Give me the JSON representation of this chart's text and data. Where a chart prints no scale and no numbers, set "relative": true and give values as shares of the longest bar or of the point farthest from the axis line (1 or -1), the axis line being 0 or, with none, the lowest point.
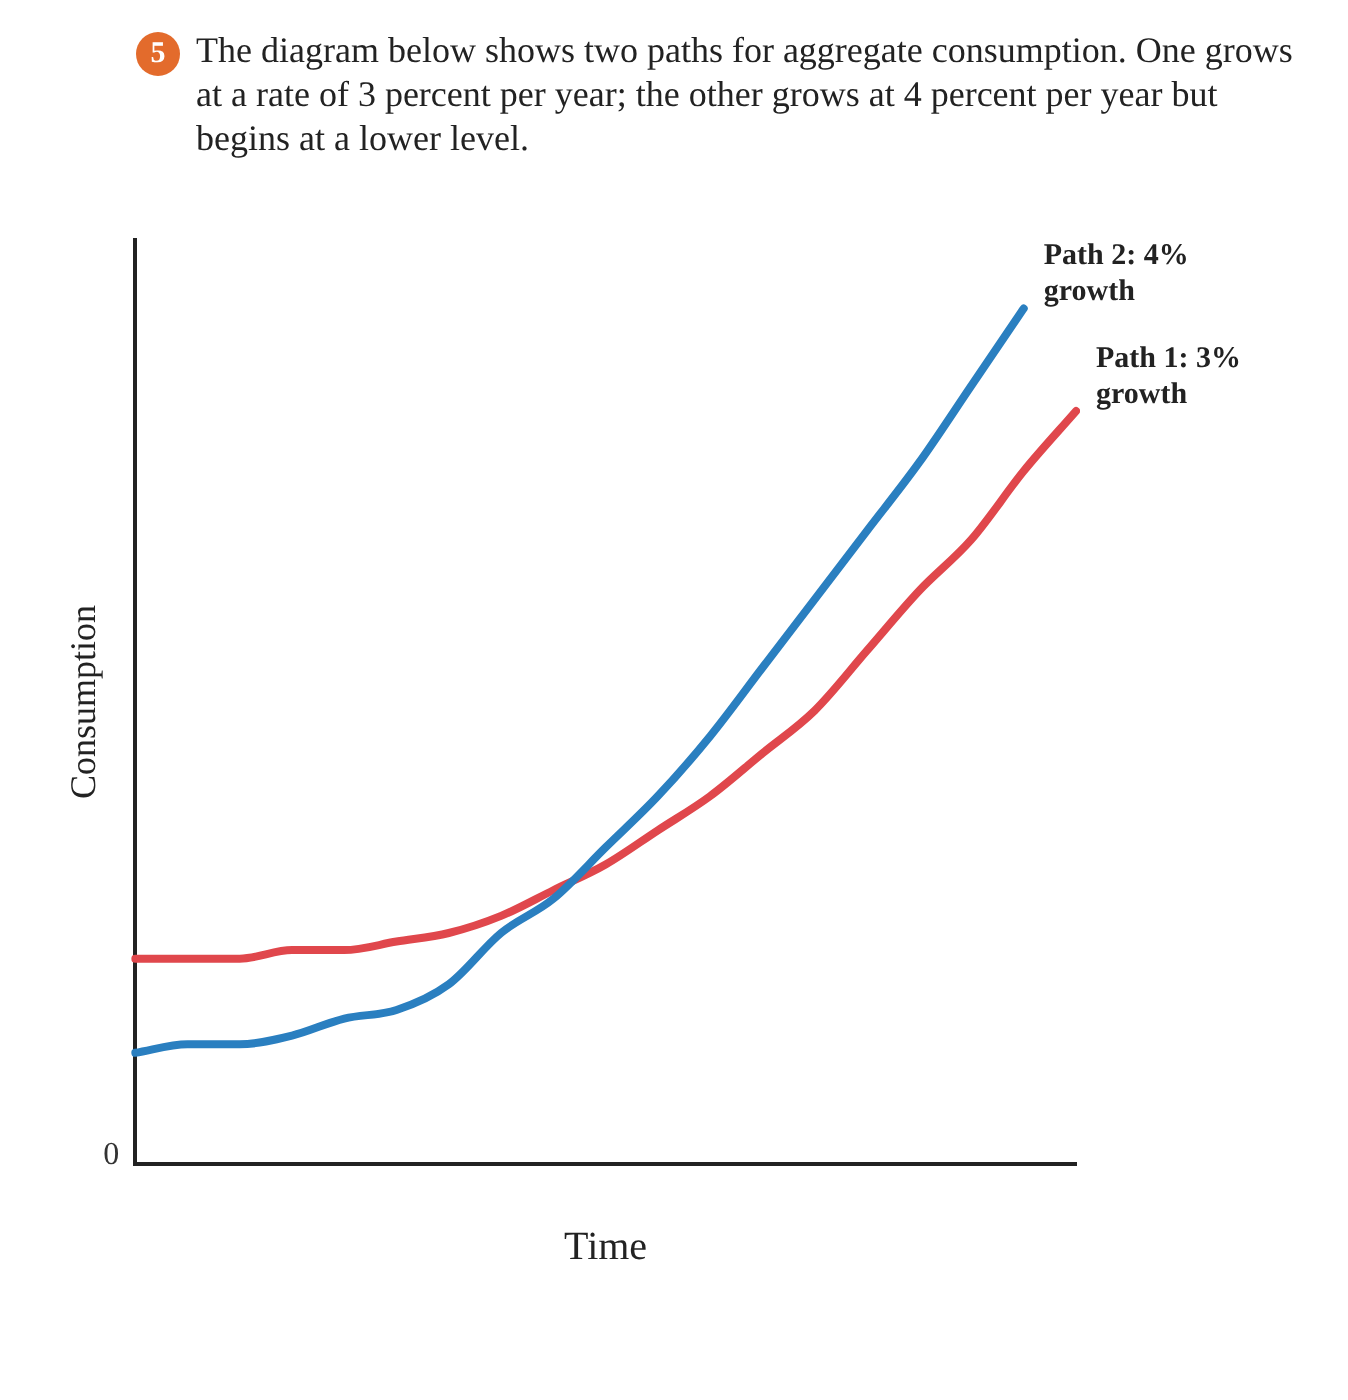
{
  "chart_data": {
    "type": "line",
    "relative": true,
    "title": "The diagram below shows two paths for aggregate consumption. One grows at a rate of 3 percent per year; the other grows at 4 percent per year but begins at a lower level.",
    "xlabel": "Time",
    "ylabel": "Consumption",
    "annotations": [
      "5",
      "0"
    ],
    "legend": false,
    "grid": false,
    "marker": "none",
    "line_style": "solid",
    "categories": [
      null,
      null,
      null,
      null,
      null,
      null,
      null,
      null,
      null,
      null,
      null,
      null,
      null,
      null,
      null,
      null,
      null,
      null,
      null
    ],
    "series": [
      {
        "name": "Path 2: 4% growth",
        "color": "#2a7fc0",
        "values": [
          0.13,
          0.14,
          0.14,
          0.15,
          0.17,
          0.18,
          0.21,
          0.27,
          0.31,
          0.37,
          0.43,
          0.5,
          0.58,
          0.66,
          0.74,
          0.82,
          0.91,
          1,
          null
        ]
      },
      {
        "name": "Path 1: 3% growth",
        "color": "#e0474c",
        "values": [
          0.24,
          0.24,
          0.24,
          0.25,
          0.25,
          0.26,
          0.27,
          0.29,
          0.32,
          0.35,
          0.39,
          0.43,
          0.48,
          0.53,
          0.6,
          0.67,
          0.73,
          0.81,
          0.88
        ]
      }
    ]
  }
}
